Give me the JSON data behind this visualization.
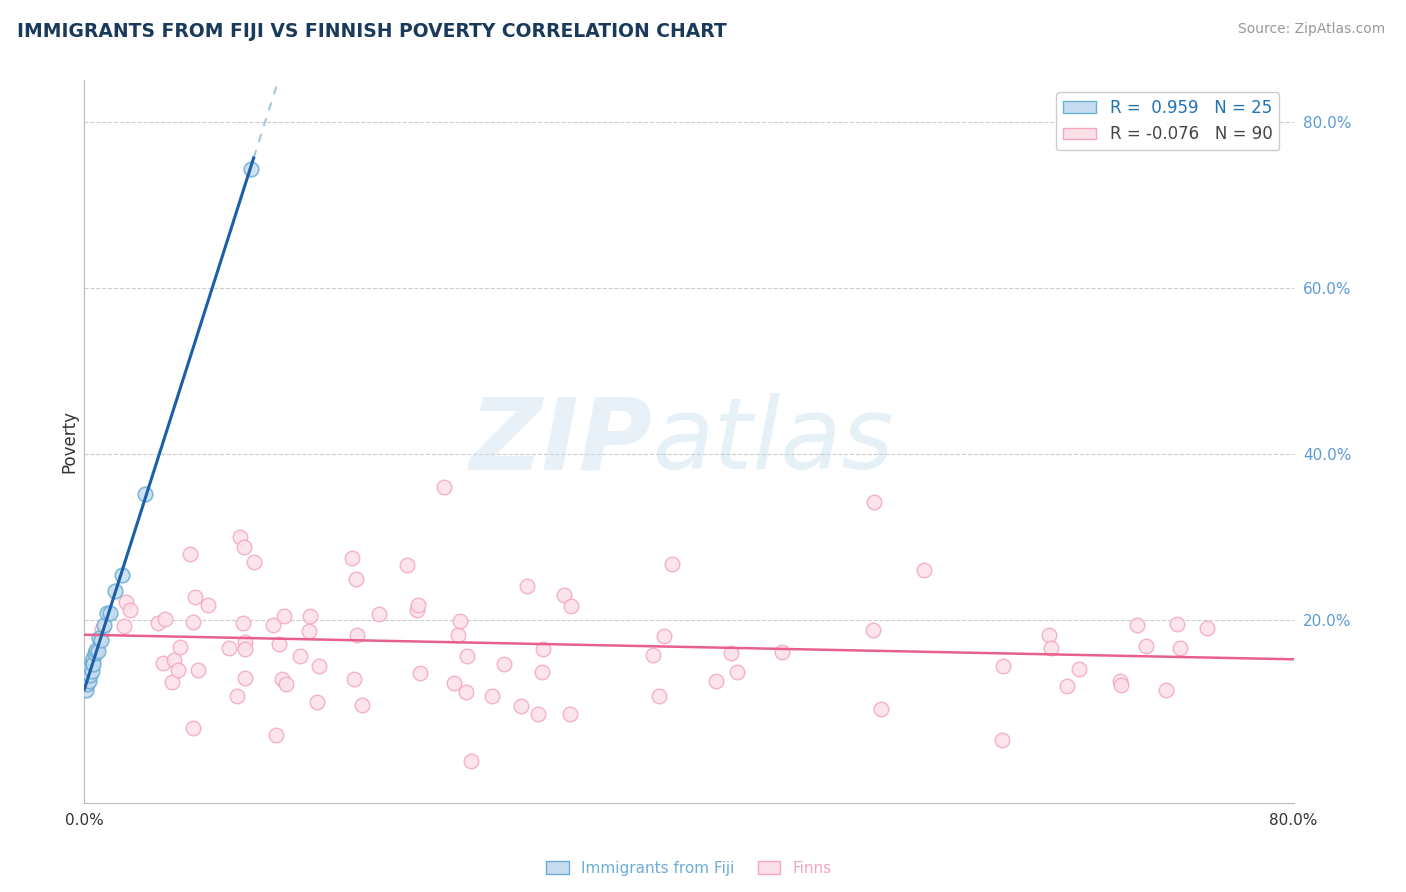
{
  "title": "IMMIGRANTS FROM FIJI VS FINNISH POVERTY CORRELATION CHART",
  "source": "Source: ZipAtlas.com",
  "ylabel": "Poverty",
  "xlim": [
    0.0,
    0.8
  ],
  "ylim": [
    -0.02,
    0.85
  ],
  "yticks": [
    0.2,
    0.4,
    0.6,
    0.8
  ],
  "fiji_R": 0.959,
  "fiji_N": 25,
  "finn_R": -0.076,
  "finn_N": 90,
  "fiji_scatter_face": "#c8dcf0",
  "fiji_scatter_edge": "#6baed6",
  "finn_scatter_face": "#fce0e8",
  "finn_scatter_edge": "#f4a6bf",
  "fiji_line_color": "#1a5fa8",
  "fiji_dash_color": "#9ecae1",
  "finn_line_color": "#e8608a",
  "background_color": "#ffffff",
  "grid_color": "#cccccc",
  "title_color": "#1a3a5c",
  "source_color": "#999999",
  "ylabel_color": "#333333",
  "ytick_color": "#5b9bd5",
  "xtick_color": "#333333",
  "legend_text_color_1": "#2171b5",
  "legend_text_color_2": "#444444",
  "bottom_legend_fiji_color": "#6baed6",
  "bottom_legend_finn_color": "#f4a6bf"
}
